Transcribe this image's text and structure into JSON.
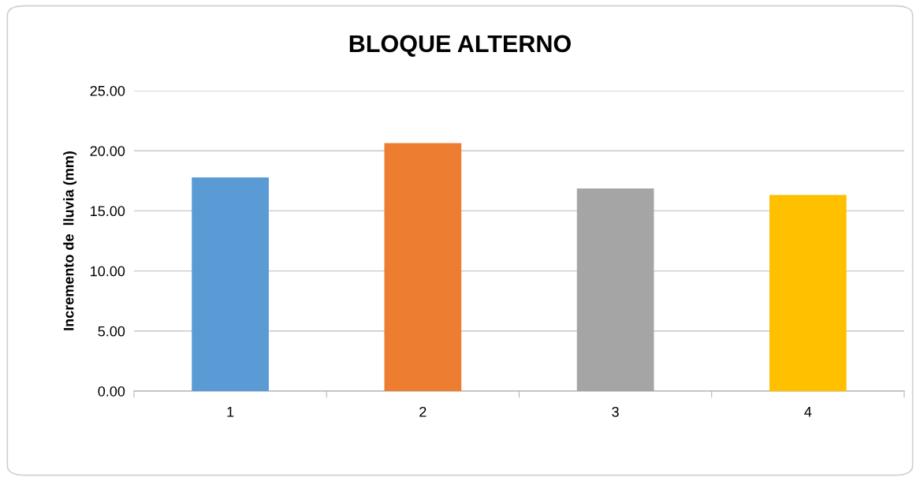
{
  "chart_data": {
    "type": "bar",
    "title": "BLOQUE ALTERNO",
    "ylabel": "Incremento de  lluvia (mm)",
    "categories": [
      "1",
      "2",
      "3",
      "4"
    ],
    "values": [
      17.78,
      20.64,
      16.86,
      16.33
    ],
    "colors": [
      "#5b9bd5",
      "#ed7d31",
      "#a5a5a5",
      "#ffc000"
    ],
    "ylim": [
      0,
      25
    ],
    "yticks": [
      {
        "value": 0,
        "label": "0.00"
      },
      {
        "value": 5,
        "label": "5.00"
      },
      {
        "value": 10,
        "label": "10.00"
      },
      {
        "value": 15,
        "label": "15.00"
      },
      {
        "value": 20,
        "label": "20.00"
      },
      {
        "value": 25,
        "label": "25.00"
      }
    ],
    "grid": "y"
  }
}
